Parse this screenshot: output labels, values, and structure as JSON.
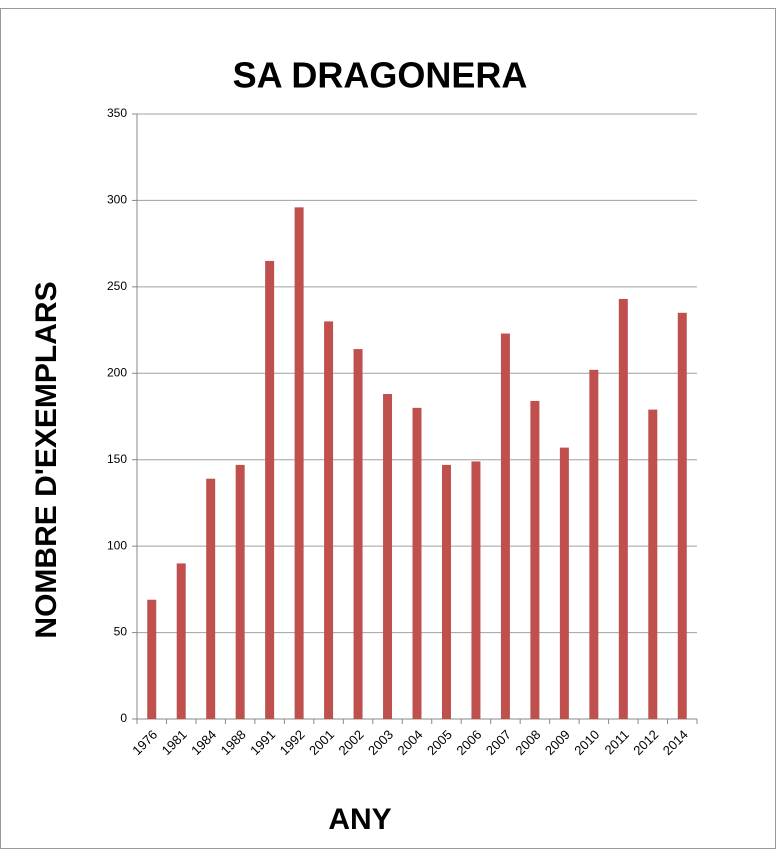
{
  "chart_data": {
    "type": "bar",
    "title": "SA DRAGONERA",
    "x_label": "ANY",
    "y_label": "NOMBRE D'EXEMPLARS",
    "categories": [
      "1976",
      "1981",
      "1984",
      "1988",
      "1991",
      "1992",
      "2001",
      "2002",
      "2003",
      "2004",
      "2005",
      "2006",
      "2007",
      "2008",
      "2009",
      "2010",
      "2011",
      "2012",
      "2014"
    ],
    "values": [
      69,
      90,
      139,
      147,
      265,
      296,
      230,
      214,
      188,
      180,
      147,
      149,
      223,
      184,
      157,
      202,
      243,
      179,
      235
    ],
    "color": "#c0504d",
    "ylim": [
      0,
      350
    ],
    "yticks": [
      0,
      50,
      100,
      150,
      200,
      250,
      300,
      350
    ],
    "grid": true
  }
}
